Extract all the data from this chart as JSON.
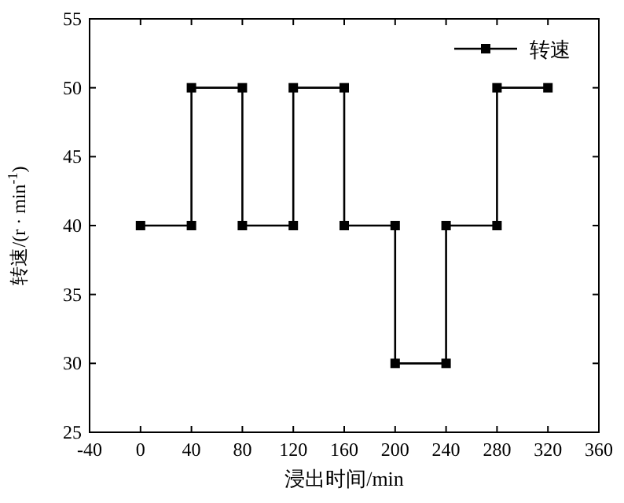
{
  "chart_data": {
    "type": "line",
    "xlabel": "浸出时间/min",
    "ylabel": "转速/(r · min$^{-1}$)",
    "x": [
      0,
      40,
      40,
      80,
      80,
      120,
      120,
      160,
      160,
      200,
      200,
      240,
      240,
      280,
      280,
      320
    ],
    "series": [
      {
        "name": "转速",
        "color": "#000000",
        "values": [
          40,
          40,
          50,
          50,
          40,
          40,
          50,
          50,
          40,
          40,
          30,
          30,
          40,
          40,
          50,
          50
        ]
      }
    ],
    "xlim": [
      -40,
      360
    ],
    "xticks": [
      -40,
      0,
      40,
      80,
      120,
      160,
      200,
      240,
      280,
      320,
      360
    ],
    "ylim": [
      25,
      55
    ],
    "yticks": [
      25,
      30,
      35,
      40,
      45,
      50,
      55
    ],
    "grid": false,
    "legend": "top right",
    "marker": "square",
    "line_style": "solid"
  }
}
